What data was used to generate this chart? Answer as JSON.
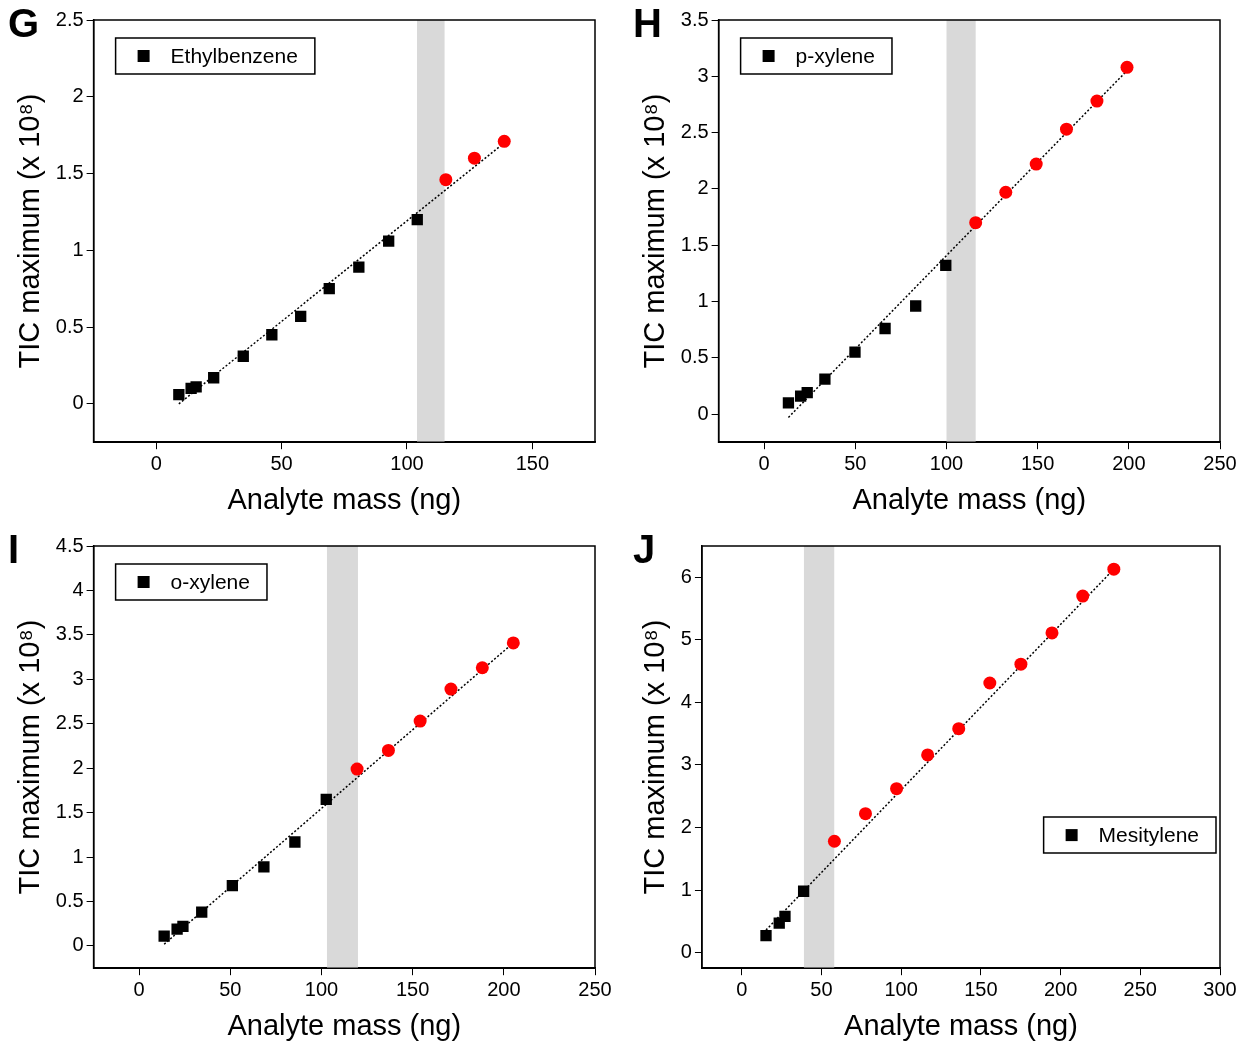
{
  "chart_data": [
    {
      "type": "scatter",
      "title": "G",
      "xlabel": "Analyte mass (ng)",
      "ylabel": "TIC maximum (x 10⁸)",
      "xlim": [
        -25,
        175
      ],
      "xticks": [
        0,
        50,
        100,
        150
      ],
      "ylim": [
        -0.25,
        2.5
      ],
      "yticks": [
        0,
        0.5,
        1,
        1.5,
        2,
        2.5
      ],
      "grid": false,
      "legend": "top left",
      "bands": [
        {
          "axis": "x",
          "from": 104,
          "to": 115,
          "color": "#d9d9d9"
        }
      ],
      "series": [
        {
          "name": "Ethylbenzene",
          "color": "#000000",
          "marker": "square",
          "x": [
            9,
            13.9,
            15.9,
            22.9,
            34.7,
            46.1,
            57.6,
            69,
            80.8,
            92.7,
            104.1
          ],
          "values": [
            0.06,
            0.1,
            0.11,
            0.17,
            0.31,
            0.45,
            0.57,
            0.75,
            0.89,
            1.06,
            1.2
          ]
        },
        {
          "color": "#ff0000",
          "marker": "circle",
          "x": [
            115.5,
            126.9,
            138.8
          ],
          "values": [
            1.46,
            1.6,
            1.71
          ]
        },
        {
          "type": "line",
          "color": "#000000",
          "line_style": "dotted",
          "marker": "none",
          "x": [
            9,
            138.8
          ],
          "values": [
            0,
            1.7
          ]
        }
      ]
    },
    {
      "type": "scatter",
      "title": "H",
      "xlabel": "Analyte mass (ng)",
      "ylabel": "TIC maximum (x 10⁸)",
      "xlim": [
        -25,
        250
      ],
      "xticks": [
        0,
        50,
        100,
        150,
        200,
        250
      ],
      "ylim": [
        -0.25,
        3.5
      ],
      "yticks": [
        0,
        0.5,
        1,
        1.5,
        2,
        2.5,
        3,
        3.5
      ],
      "grid": false,
      "legend": "top left",
      "bands": [
        {
          "axis": "x",
          "from": 100,
          "to": 116,
          "color": "#d9d9d9"
        }
      ],
      "series": [
        {
          "name": "p-xylene",
          "color": "#000000",
          "marker": "square",
          "x": [
            13.3,
            20,
            23.6,
            33.3,
            49.8,
            66.3,
            83.1,
            99.6
          ],
          "values": [
            0.1,
            0.16,
            0.19,
            0.31,
            0.55,
            0.76,
            0.96,
            1.32
          ]
        },
        {
          "color": "#ff0000",
          "marker": "circle",
          "x": [
            116,
            132.5,
            149.2,
            165.8,
            182.5,
            199
          ],
          "values": [
            1.7,
            1.97,
            2.22,
            2.53,
            2.78,
            3.08
          ]
        },
        {
          "type": "line",
          "color": "#000000",
          "line_style": "dotted",
          "marker": "none",
          "x": [
            13.3,
            199
          ],
          "values": [
            -0.03,
            3.05
          ]
        }
      ]
    },
    {
      "type": "scatter",
      "title": "I",
      "xlabel": "Analyte mass (ng)",
      "ylabel": "TIC maximum (x 10⁸)",
      "xlim": [
        -25,
        250
      ],
      "xticks": [
        0,
        50,
        100,
        150,
        200,
        250
      ],
      "ylim": [
        -0.25,
        4.5
      ],
      "yticks": [
        0,
        0.5,
        1,
        1.5,
        2,
        2.5,
        3,
        3.5,
        4,
        4.5
      ],
      "grid": false,
      "legend": "top left",
      "bands": [
        {
          "axis": "x",
          "from": 103,
          "to": 120,
          "color": "#d9d9d9"
        }
      ],
      "series": [
        {
          "name": "o-xylene",
          "color": "#000000",
          "marker": "square",
          "x": [
            13.7,
            20.8,
            24,
            34.3,
            51.1,
            68.4,
            85.4,
            102.6
          ],
          "values": [
            0.11,
            0.19,
            0.22,
            0.38,
            0.68,
            0.89,
            1.17,
            1.65
          ]
        },
        {
          "color": "#ff0000",
          "marker": "circle",
          "x": [
            119.5,
            136.7,
            154.1,
            171,
            188.2,
            205.2
          ],
          "values": [
            1.99,
            2.2,
            2.53,
            2.89,
            3.13,
            3.41
          ]
        },
        {
          "type": "line",
          "color": "#000000",
          "line_style": "dotted",
          "marker": "none",
          "x": [
            13.7,
            205.2
          ],
          "values": [
            0.02,
            3.41
          ]
        }
      ]
    },
    {
      "type": "scatter",
      "title": "J",
      "xlabel": "Analyte mass (ng)",
      "ylabel": "TIC maximum (x 10⁸)",
      "xlim": [
        -25,
        300
      ],
      "xticks": [
        0,
        50,
        100,
        150,
        200,
        250,
        300
      ],
      "ylim": [
        -0.25,
        6.5
      ],
      "yticks": [
        0,
        1,
        2,
        3,
        4,
        5,
        6
      ],
      "grid": false,
      "legend": "right",
      "bands": [
        {
          "axis": "x",
          "from": 39,
          "to": 58,
          "color": "#d9d9d9"
        }
      ],
      "series": [
        {
          "name": "Mesitylene",
          "color": "#000000",
          "marker": "square",
          "x": [
            15.2,
            23.5,
            27.1,
            38.8
          ],
          "values": [
            0.27,
            0.47,
            0.58,
            0.98
          ]
        },
        {
          "color": "#ff0000",
          "marker": "circle",
          "x": [
            58.1,
            77.6,
            97.1,
            116.6,
            136.1,
            155.6,
            175.1,
            194.6,
            213.9,
            233.4
          ],
          "values": [
            1.78,
            2.22,
            2.62,
            3.16,
            3.58,
            4.31,
            4.61,
            5.11,
            5.7,
            6.13
          ]
        },
        {
          "type": "line",
          "color": "#000000",
          "line_style": "dotted",
          "marker": "none",
          "x": [
            15.2,
            233.4
          ],
          "values": [
            0.36,
            6.13
          ]
        }
      ]
    }
  ]
}
